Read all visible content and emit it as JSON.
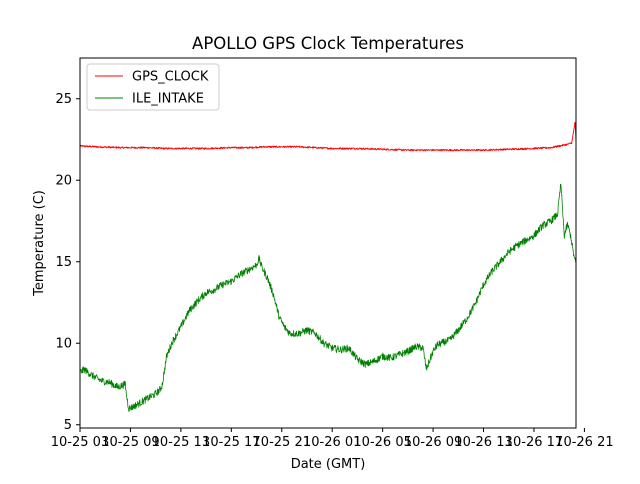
{
  "chart_data": {
    "type": "line",
    "title": "APOLLO GPS Clock Temperatures",
    "xlabel": "Date (GMT)",
    "ylabel": "Temperature (C)",
    "xlim": [
      0,
      59
    ],
    "ylim": [
      4.8,
      27.5
    ],
    "x_unit": "hours since 10-25 03:00 GMT",
    "grid": false,
    "legend_position": "top-left",
    "x_ticks": [
      {
        "x": 0,
        "label": "10-25 03"
      },
      {
        "x": 6,
        "label": "10-25 09"
      },
      {
        "x": 12,
        "label": "10-25 13"
      },
      {
        "x": 18,
        "label": "10-25 17"
      },
      {
        "x": 24,
        "label": "10-25 21"
      },
      {
        "x": 30,
        "label": "10-26 01"
      },
      {
        "x": 36,
        "label": "10-26 05"
      },
      {
        "x": 42,
        "label": "10-26 09"
      },
      {
        "x": 48,
        "label": "10-26 13"
      },
      {
        "x": 54,
        "label": "10-26 17"
      },
      {
        "x": 60,
        "label": "10-26 21"
      }
    ],
    "y_ticks": [
      {
        "y": 5,
        "label": "5"
      },
      {
        "y": 10,
        "label": "10"
      },
      {
        "y": 15,
        "label": "15"
      },
      {
        "y": 20,
        "label": "20"
      },
      {
        "y": 25,
        "label": "25"
      }
    ],
    "series": [
      {
        "name": "GPS_CLOCK",
        "color": "#ff0000",
        "x": [
          0,
          2,
          5,
          8,
          10,
          12,
          15,
          18,
          20,
          22,
          24,
          26,
          28,
          30,
          33,
          36,
          39,
          42,
          45,
          48,
          51,
          54,
          56,
          57,
          58,
          58.5,
          58.9,
          59
        ],
        "y": [
          22.1,
          22.05,
          22.0,
          22.0,
          21.95,
          21.95,
          21.95,
          22.0,
          22.0,
          22.05,
          22.05,
          22.05,
          22.0,
          21.95,
          21.95,
          21.9,
          21.85,
          21.85,
          21.85,
          21.85,
          21.9,
          21.95,
          22.0,
          22.1,
          22.2,
          22.3,
          23.6,
          22.3
        ]
      },
      {
        "name": "ILE_INTAKE",
        "color": "#008000",
        "x": [
          0,
          0.5,
          1.5,
          2.5,
          3.5,
          4.5,
          5.4,
          5.5,
          5.8,
          6.3,
          7,
          8,
          9,
          9.6,
          9.8,
          10.3,
          11,
          12,
          13,
          14,
          15,
          16,
          17,
          18,
          19,
          20,
          21,
          21.3,
          21.6,
          22.3,
          23,
          23.7,
          24.3,
          25,
          26,
          26.5,
          27,
          28,
          29,
          30,
          31,
          32,
          33,
          34,
          35,
          36,
          37,
          38,
          39,
          40,
          40.8,
          41.2,
          42,
          42.5,
          43,
          44,
          45,
          46,
          47,
          48,
          49,
          50,
          51,
          52,
          53,
          54,
          55,
          56,
          56.8,
          57.2,
          57.6,
          58,
          58.4,
          58.8,
          59
        ],
        "y": [
          8.2,
          8.4,
          8.0,
          7.7,
          7.6,
          7.3,
          7.5,
          6.9,
          6.0,
          6.1,
          6.3,
          6.6,
          6.9,
          7.2,
          7.5,
          9.2,
          10.1,
          11.0,
          12.0,
          12.6,
          13.1,
          13.3,
          13.6,
          13.8,
          14.2,
          14.5,
          14.8,
          15.2,
          14.7,
          14.0,
          13.0,
          11.6,
          11.0,
          10.6,
          10.6,
          10.7,
          10.8,
          10.6,
          10.0,
          9.7,
          9.6,
          9.7,
          9.0,
          8.7,
          8.9,
          9.2,
          9.1,
          9.3,
          9.5,
          9.8,
          9.7,
          8.4,
          9.5,
          9.9,
          10.0,
          10.2,
          10.8,
          11.5,
          12.4,
          13.6,
          14.4,
          15.0,
          15.6,
          16.0,
          16.3,
          16.6,
          17.2,
          17.5,
          17.9,
          19.8,
          16.6,
          17.3,
          16.5,
          15.2,
          14.9
        ]
      }
    ]
  }
}
